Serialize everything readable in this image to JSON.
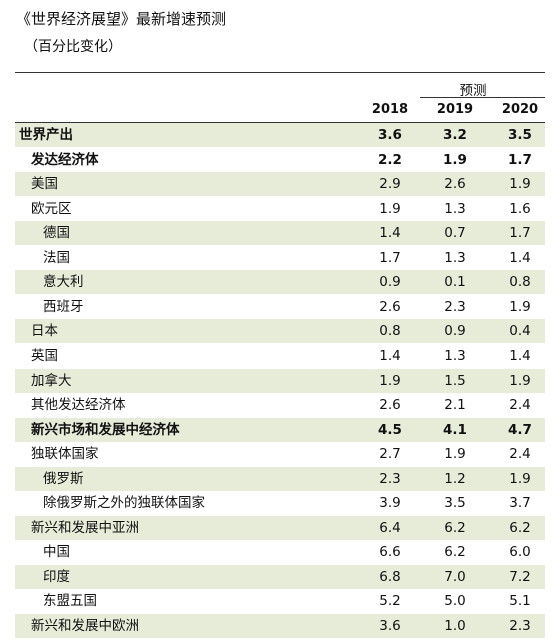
{
  "header": {
    "title": "《世界经济展望》最新增速预测",
    "subtitle": "（百分比变化）"
  },
  "table": {
    "forecast_label": "预测",
    "columns": [
      "2018",
      "2019",
      "2020"
    ],
    "rows": [
      {
        "label": "世界产出",
        "values": [
          "3.6",
          "3.2",
          "3.5"
        ]
      },
      {
        "label": "发达经济体",
        "values": [
          "2.2",
          "1.9",
          "1.7"
        ]
      },
      {
        "label": "美国",
        "values": [
          "2.9",
          "2.6",
          "1.9"
        ]
      },
      {
        "label": "欧元区",
        "values": [
          "1.9",
          "1.3",
          "1.6"
        ]
      },
      {
        "label": "德国",
        "values": [
          "1.4",
          "0.7",
          "1.7"
        ]
      },
      {
        "label": "法国",
        "values": [
          "1.7",
          "1.3",
          "1.4"
        ]
      },
      {
        "label": "意大利",
        "values": [
          "0.9",
          "0.1",
          "0.8"
        ]
      },
      {
        "label": "西班牙",
        "values": [
          "2.6",
          "2.3",
          "1.9"
        ]
      },
      {
        "label": "日本",
        "values": [
          "0.8",
          "0.9",
          "0.4"
        ]
      },
      {
        "label": "英国",
        "values": [
          "1.4",
          "1.3",
          "1.4"
        ]
      },
      {
        "label": "加拿大",
        "values": [
          "1.9",
          "1.5",
          "1.9"
        ]
      },
      {
        "label": "其他发达经济体",
        "values": [
          "2.6",
          "2.1",
          "2.4"
        ]
      },
      {
        "label": "新兴市场和发展中经济体",
        "values": [
          "4.5",
          "4.1",
          "4.7"
        ]
      },
      {
        "label": "独联体国家",
        "values": [
          "2.7",
          "1.9",
          "2.4"
        ]
      },
      {
        "label": "俄罗斯",
        "values": [
          "2.3",
          "1.2",
          "1.9"
        ]
      },
      {
        "label": "除俄罗斯之外的独联体国家",
        "values": [
          "3.9",
          "3.5",
          "3.7"
        ]
      },
      {
        "label": "新兴和发展中亚洲",
        "values": [
          "6.4",
          "6.2",
          "6.2"
        ]
      },
      {
        "label": "中国",
        "values": [
          "6.6",
          "6.2",
          "6.0"
        ]
      },
      {
        "label": "印度",
        "values": [
          "6.8",
          "7.0",
          "7.2"
        ]
      },
      {
        "label": "东盟五国",
        "values": [
          "5.2",
          "5.0",
          "5.1"
        ]
      },
      {
        "label": "新兴和发展中欧洲",
        "values": [
          "3.6",
          "1.0",
          "2.3"
        ]
      }
    ]
  }
}
